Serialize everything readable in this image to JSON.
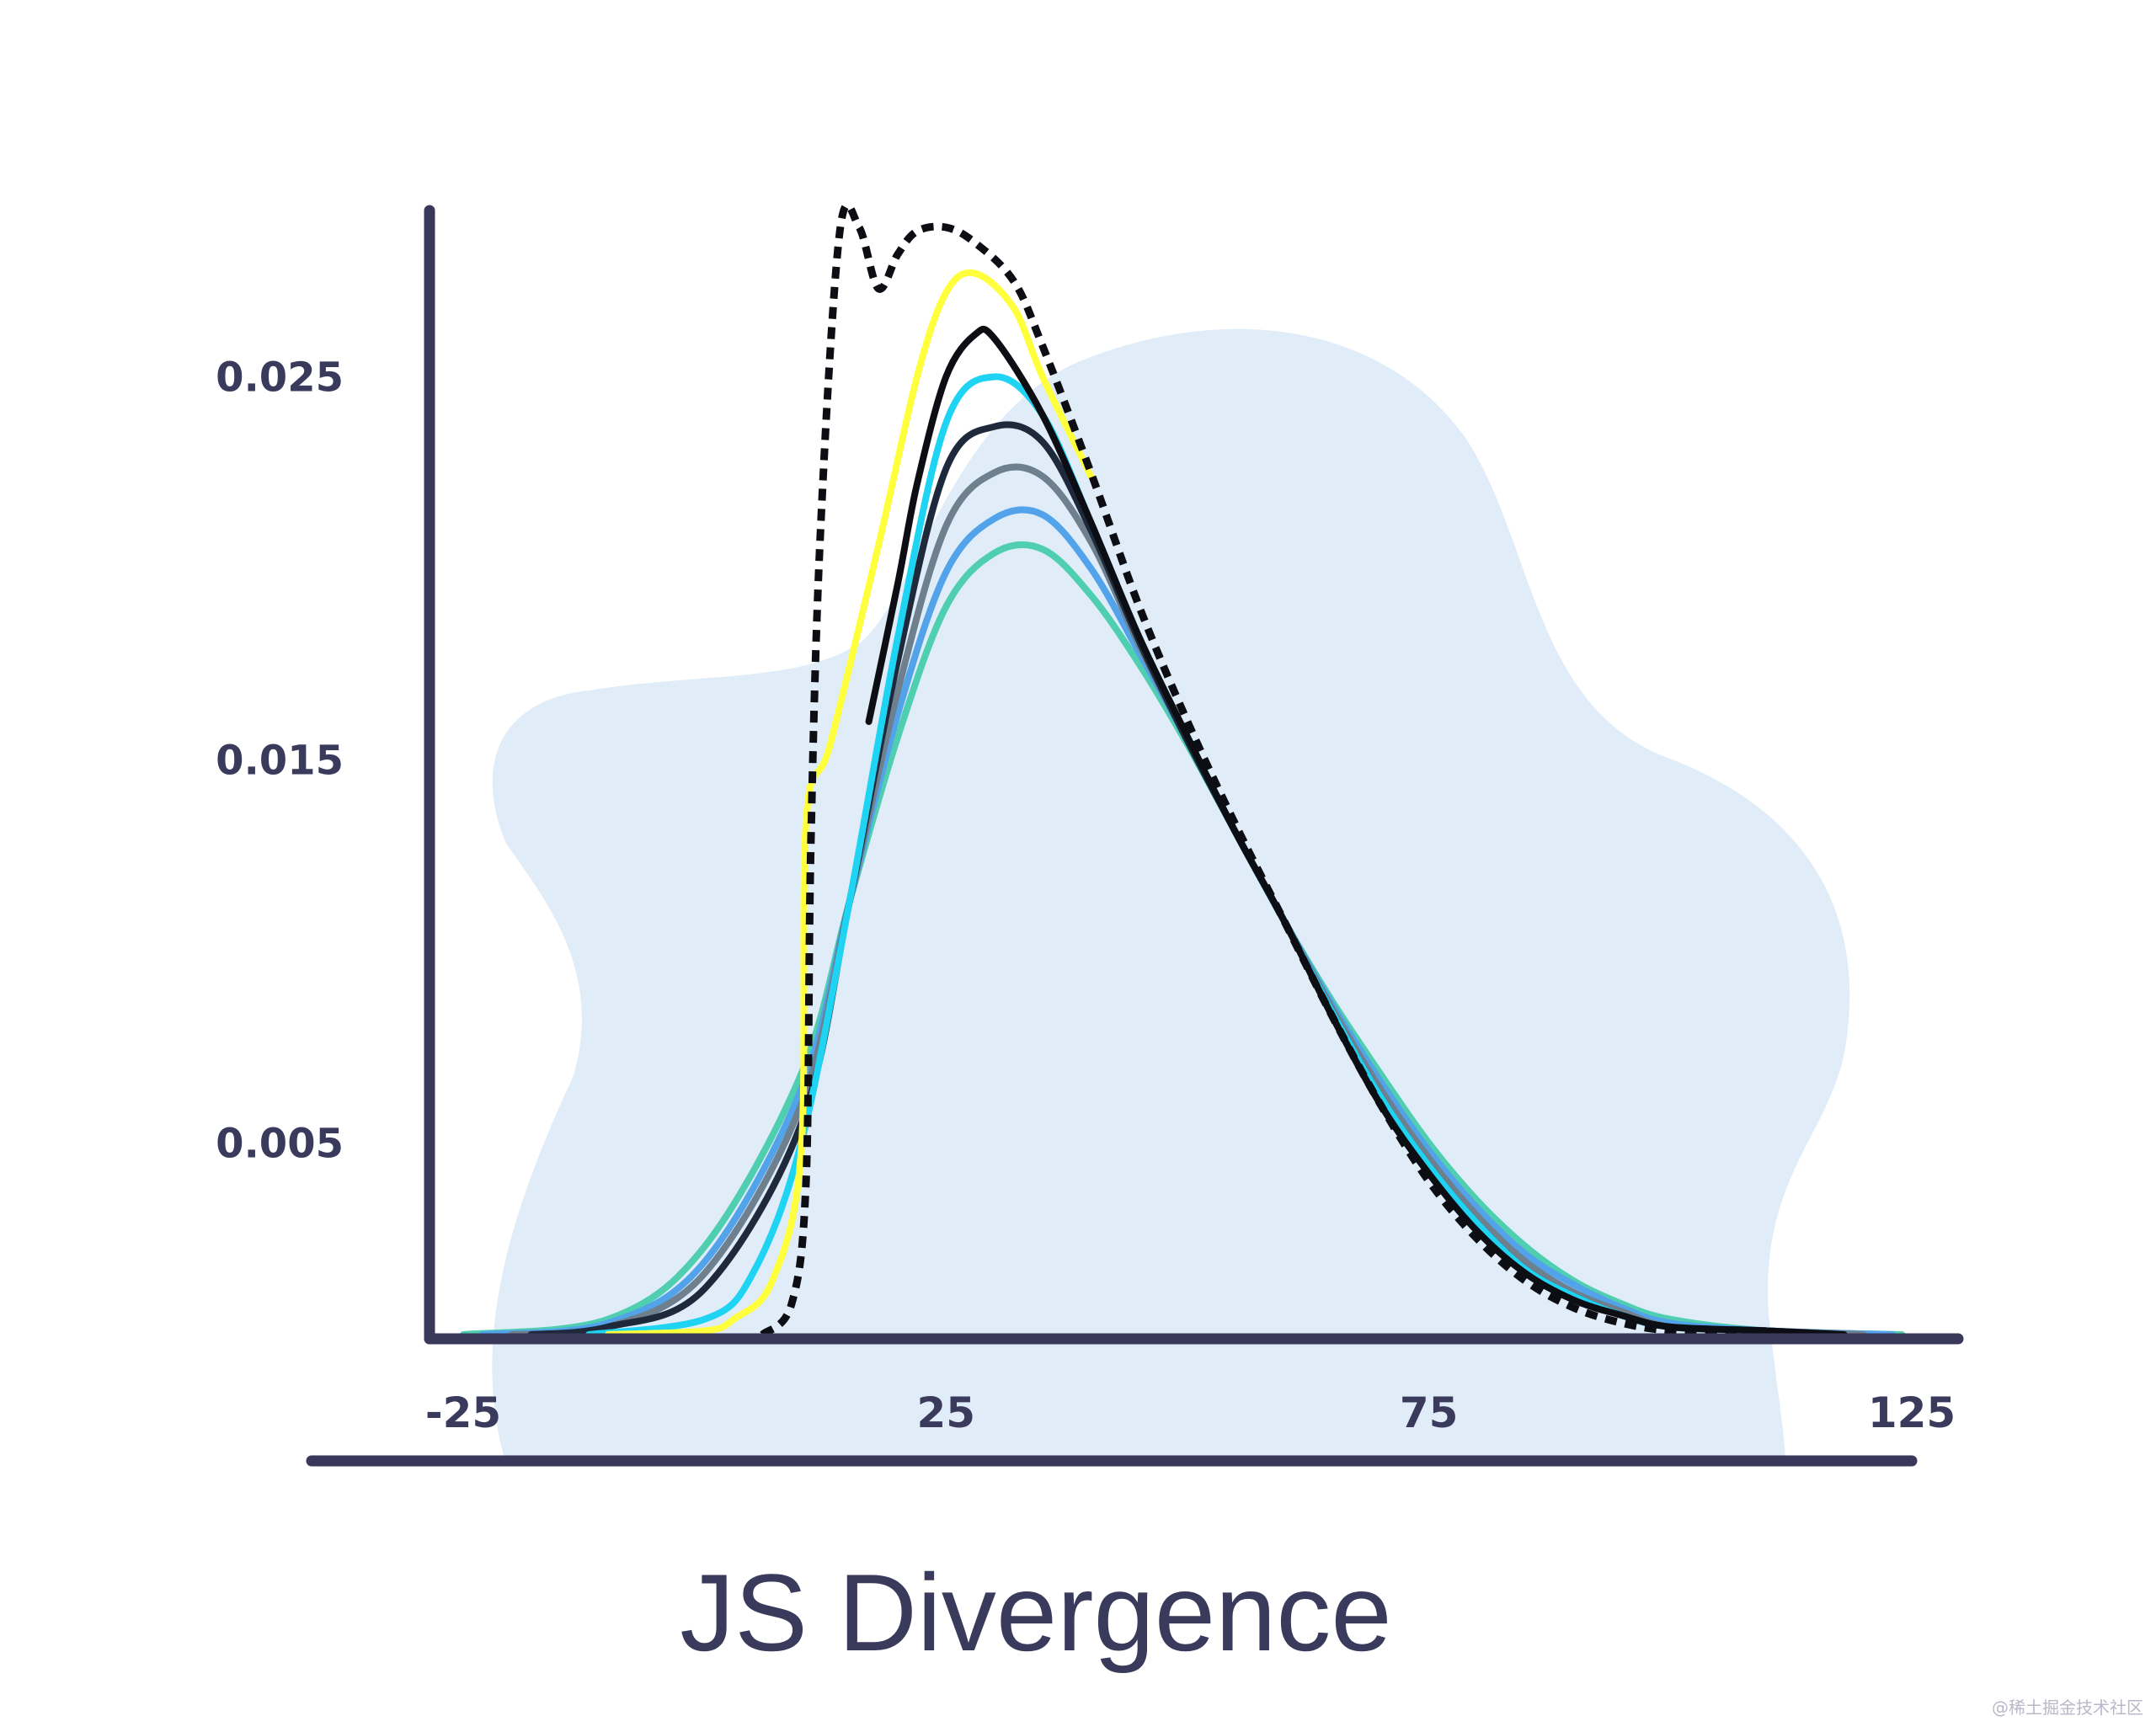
{
  "chart_data": {
    "type": "line",
    "title": "JS Divergence",
    "xlabel": "",
    "ylabel": "",
    "xlim": [
      -25,
      125
    ],
    "ylim": [
      0,
      0.0265
    ],
    "x_ticks": [
      "-25",
      "25",
      "75",
      "125"
    ],
    "y_ticks": [
      "0.025",
      "0.015",
      "0.005"
    ],
    "x_tick_values": [
      -25,
      25,
      75,
      125
    ],
    "y_tick_values": [
      0.025,
      0.015,
      0.005
    ],
    "grid": false,
    "legend": "none",
    "series": [
      {
        "color": "#4fcfb0",
        "x": [
          -25,
          -10,
          0,
          10,
          15,
          20,
          25,
          30,
          35,
          40,
          45,
          50,
          55,
          60,
          65,
          70,
          75,
          80,
          85,
          90,
          95,
          100,
          110,
          124
        ],
        "y": [
          0,
          0.0004,
          0.0023,
          0.0068,
          0.0113,
          0.0156,
          0.019,
          0.0204,
          0.0205,
          0.0193,
          0.0175,
          0.0154,
          0.0131,
          0.0108,
          0.0087,
          0.0068,
          0.005,
          0.0035,
          0.0023,
          0.0014,
          0.0008,
          0.0004,
          0.0001,
          0
        ]
      },
      {
        "color": "#52a3ea",
        "x": [
          -23,
          -10,
          0,
          10,
          15,
          20,
          25,
          30,
          35,
          40,
          45,
          50,
          55,
          60,
          65,
          70,
          75,
          80,
          85,
          90,
          95,
          100,
          110,
          123
        ],
        "y": [
          0,
          0.0003,
          0.0019,
          0.0064,
          0.0113,
          0.0162,
          0.0199,
          0.0213,
          0.0214,
          0.02,
          0.0178,
          0.0155,
          0.0131,
          0.0108,
          0.0086,
          0.0066,
          0.0048,
          0.0033,
          0.0021,
          0.0013,
          0.0007,
          0.0003,
          0.0001,
          0
        ]
      },
      {
        "color": "#6e7f8e",
        "x": [
          -20,
          -10,
          0,
          10,
          15,
          20,
          25,
          30,
          35,
          40,
          45,
          50,
          55,
          60,
          65,
          70,
          75,
          80,
          85,
          90,
          95,
          100,
          110,
          120
        ],
        "y": [
          0,
          0.0002,
          0.0016,
          0.006,
          0.0113,
          0.0168,
          0.0211,
          0.0225,
          0.0224,
          0.0207,
          0.018,
          0.0155,
          0.0131,
          0.0108,
          0.0085,
          0.0064,
          0.0046,
          0.0031,
          0.0019,
          0.0011,
          0.0006,
          0.0002,
          0.0001,
          0
        ]
      },
      {
        "color": "#1e2a3c",
        "x": [
          -18,
          -10,
          0,
          10,
          15,
          20,
          25,
          30,
          35,
          40,
          45,
          50,
          55,
          60,
          65,
          70,
          75,
          80,
          85,
          90,
          95,
          100,
          110,
          118
        ],
        "y": [
          0,
          0.0002,
          0.0012,
          0.0055,
          0.0113,
          0.0176,
          0.0226,
          0.0237,
          0.0233,
          0.021,
          0.0181,
          0.0155,
          0.0131,
          0.0108,
          0.0084,
          0.0062,
          0.0044,
          0.0029,
          0.0017,
          0.001,
          0.0005,
          0.0002,
          0.0001,
          0
        ]
      },
      {
        "color": "#1fd3f2",
        "x": [
          -12,
          0,
          5,
          10,
          15,
          20,
          25,
          30,
          35,
          40,
          45,
          50,
          55,
          60,
          65,
          70,
          75,
          80,
          85,
          90,
          95,
          100,
          110,
          118
        ],
        "y": [
          0,
          0.0004,
          0.0016,
          0.005,
          0.0113,
          0.0182,
          0.0238,
          0.025,
          0.024,
          0.0212,
          0.0182,
          0.0156,
          0.0131,
          0.0108,
          0.0084,
          0.0062,
          0.0044,
          0.0029,
          0.0017,
          0.001,
          0.0005,
          0.0002,
          0.0001,
          0
        ]
      },
      {
        "color": "#0d0d14",
        "x": [
          17,
          20,
          22,
          25,
          28,
          30,
          35,
          40,
          45,
          50,
          55,
          60,
          65,
          70,
          75,
          80,
          85,
          90,
          95,
          100,
          110,
          118
        ],
        "y": [
          0.016,
          0.0196,
          0.0222,
          0.025,
          0.0261,
          0.026,
          0.024,
          0.0212,
          0.0182,
          0.0156,
          0.0131,
          0.0108,
          0.0083,
          0.006,
          0.0042,
          0.0027,
          0.0016,
          0.0009,
          0.0005,
          0.0002,
          0.0001,
          0
        ]
      },
      {
        "color": "#ffff3c",
        "x": [
          -10,
          0,
          3,
          7,
          10,
          10.5,
          13,
          18,
          22,
          25,
          28,
          32,
          35,
          40
        ],
        "y": [
          0,
          0.0001,
          0.0004,
          0.0014,
          0.0048,
          0.0134,
          0.0154,
          0.0206,
          0.025,
          0.0272,
          0.0277,
          0.0268,
          0.025,
          0.0224
        ]
      },
      {
        "color": "#0d0d14",
        "dashed": true,
        "x": [
          6,
          9,
          10.5,
          11,
          12,
          14,
          16,
          18,
          20,
          22,
          25,
          28,
          32,
          35,
          40,
          45,
          50,
          55,
          60,
          65,
          70,
          75,
          80,
          85,
          90,
          95,
          100,
          108
        ],
        "y": [
          0,
          0.0008,
          0.004,
          0.0128,
          0.021,
          0.0288,
          0.0289,
          0.0273,
          0.0282,
          0.0288,
          0.0289,
          0.0285,
          0.0275,
          0.0258,
          0.0225,
          0.019,
          0.016,
          0.0133,
          0.0108,
          0.0083,
          0.006,
          0.004,
          0.0025,
          0.0014,
          0.0007,
          0.0003,
          0.0001,
          0
        ]
      }
    ]
  },
  "watermark": "@稀土掘金技术社区"
}
